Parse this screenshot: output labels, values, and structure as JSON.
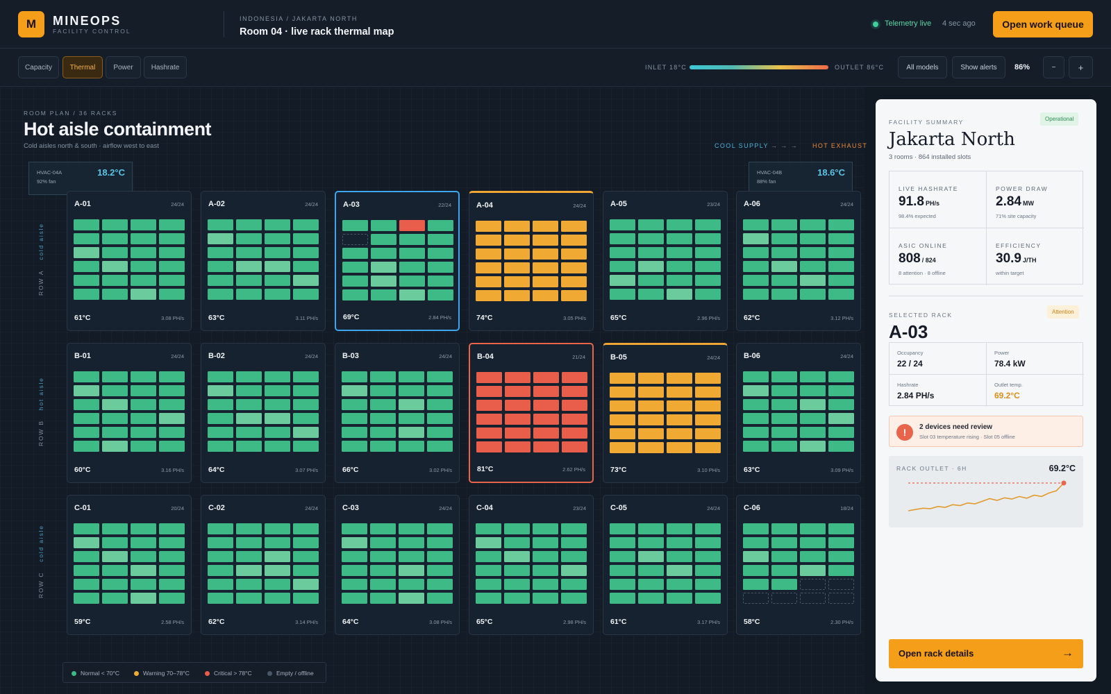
{
  "brand": {
    "logo_letter": "M",
    "name": "MINEOPS",
    "sub": "FACILITY CONTROL"
  },
  "header": {
    "crumb": "INDONESIA / JAKARTA NORTH",
    "title": "Room 04 · live rack thermal map",
    "telemetry_label": "Telemetry live",
    "telemetry_ago": "4 sec ago",
    "queue_button": "Open work queue"
  },
  "toolbar": {
    "tabs": [
      {
        "label": "Capacity"
      },
      {
        "label": "Thermal",
        "active": true
      },
      {
        "label": "Power"
      },
      {
        "label": "Hashrate"
      }
    ],
    "scale_inlet": "INLET 18°C",
    "scale_outlet": "OUTLET 86°C",
    "models_button": "All models",
    "alerts_button": "Show alerts",
    "zoom": "86%",
    "zoom_out": "−",
    "zoom_in": "+"
  },
  "plan": {
    "kicker": "ROOM PLAN / 36 RACKS",
    "title": "Hot aisle containment",
    "subtitle": "Cold aisles north & south · airflow west to east",
    "flow_cool": "COOL SUPPLY",
    "flow_arrows": "→  →  →",
    "flow_hot": "HOT EXHAUST",
    "hvac": [
      {
        "id": "HVAC-04A",
        "fan": "92% fan",
        "temp": "18.2°C"
      },
      {
        "id": "HVAC-04B",
        "fan": "88% fan",
        "temp": "18.6°C"
      }
    ],
    "rows": [
      {
        "label": "ROW A",
        "aisle": "cold aisle"
      },
      {
        "label": "ROW B",
        "aisle": "hot aisle"
      },
      {
        "label": "ROW C",
        "aisle": "cold aisle"
      }
    ]
  },
  "racks": [
    {
      "id": "A-01",
      "occupancy": "24/24",
      "temp": "61°C",
      "hash": "3.08 PH/s",
      "state": "normal"
    },
    {
      "id": "A-02",
      "occupancy": "24/24",
      "temp": "63°C",
      "hash": "3.11 PH/s",
      "state": "normal"
    },
    {
      "id": "A-03",
      "occupancy": "22/24",
      "temp": "69°C",
      "hash": "2.84 PH/s",
      "state": "selected"
    },
    {
      "id": "A-04",
      "occupancy": "24/24",
      "temp": "74°C",
      "hash": "3.05 PH/s",
      "state": "warning"
    },
    {
      "id": "A-05",
      "occupancy": "23/24",
      "temp": "65°C",
      "hash": "2.96 PH/s",
      "state": "normal"
    },
    {
      "id": "A-06",
      "occupancy": "24/24",
      "temp": "62°C",
      "hash": "3.12 PH/s",
      "state": "normal"
    },
    {
      "id": "B-01",
      "occupancy": "24/24",
      "temp": "60°C",
      "hash": "3.16 PH/s",
      "state": "normal"
    },
    {
      "id": "B-02",
      "occupancy": "24/24",
      "temp": "64°C",
      "hash": "3.07 PH/s",
      "state": "normal"
    },
    {
      "id": "B-03",
      "occupancy": "24/24",
      "temp": "66°C",
      "hash": "3.02 PH/s",
      "state": "normal"
    },
    {
      "id": "B-04",
      "occupancy": "21/24",
      "temp": "81°C",
      "hash": "2.62 PH/s",
      "state": "critical"
    },
    {
      "id": "B-05",
      "occupancy": "24/24",
      "temp": "73°C",
      "hash": "3.10 PH/s",
      "state": "warning"
    },
    {
      "id": "B-06",
      "occupancy": "24/24",
      "temp": "63°C",
      "hash": "3.09 PH/s",
      "state": "normal"
    },
    {
      "id": "C-01",
      "occupancy": "20/24",
      "temp": "59°C",
      "hash": "2.58 PH/s",
      "state": "normal"
    },
    {
      "id": "C-02",
      "occupancy": "24/24",
      "temp": "62°C",
      "hash": "3.14 PH/s",
      "state": "normal"
    },
    {
      "id": "C-03",
      "occupancy": "24/24",
      "temp": "64°C",
      "hash": "3.08 PH/s",
      "state": "normal"
    },
    {
      "id": "C-04",
      "occupancy": "23/24",
      "temp": "65°C",
      "hash": "2.98 PH/s",
      "state": "normal"
    },
    {
      "id": "C-05",
      "occupancy": "24/24",
      "temp": "61°C",
      "hash": "3.17 PH/s",
      "state": "normal"
    },
    {
      "id": "C-06",
      "occupancy": "18/24",
      "temp": "58°C",
      "hash": "2.30 PH/s",
      "state": "normal"
    }
  ],
  "slot_overrides": {
    "A-03": {
      "2": "c",
      "4": "e"
    },
    "C-06": {
      "18": "e",
      "19": "e",
      "20": "e",
      "21": "e",
      "22": "e",
      "23": "e"
    }
  },
  "legend": [
    {
      "label": "Normal < 70°C",
      "color": "#3dba85"
    },
    {
      "label": "Warning 70–78°C",
      "color": "#f0aa33"
    },
    {
      "label": "Critical > 78°C",
      "color": "#e95d4b"
    },
    {
      "label": "Empty / offline",
      "color": "#4a5565"
    }
  ],
  "panel": {
    "kicker": "FACILITY SUMMARY",
    "status": "Operational",
    "facility": "Jakarta North",
    "facility_sub": "3 rooms · 864 installed slots",
    "stats": [
      {
        "label": "LIVE HASHRATE",
        "value": "91.8",
        "unit": "PH/s",
        "sub": "98.4% expected"
      },
      {
        "label": "POWER DRAW",
        "value": "2.84",
        "unit": "MW",
        "sub": "71% site capacity"
      },
      {
        "label": "ASIC ONLINE",
        "value": "808",
        "unit": "/ 824",
        "sub": "8 attention · 8 offline"
      },
      {
        "label": "EFFICIENCY",
        "value": "30.9",
        "unit": "J/TH",
        "sub": "within target"
      }
    ],
    "selected_kicker": "SELECTED RACK",
    "selected_status": "Attention",
    "selected_rack": "A-03",
    "rack_stats": [
      {
        "label": "Occupancy",
        "value": "22 / 24"
      },
      {
        "label": "Power",
        "value": "78.4 kW"
      },
      {
        "label": "Hashrate",
        "value": "2.84 PH/s"
      },
      {
        "label": "Outlet temp.",
        "value": "69.2°C",
        "hot": true
      }
    ],
    "alert_title": "2 devices need review",
    "alert_sub": "Slot 03 temperature rising · Slot 05 offline",
    "spark_label": "RACK OUTLET · 6H",
    "spark_value": "69.2°C",
    "spark_series": [
      62.8,
      63.1,
      63.4,
      63.3,
      63.8,
      63.6,
      64.2,
      64.0,
      64.6,
      64.4,
      65.0,
      65.6,
      65.2,
      65.8,
      65.5,
      66.1,
      65.7,
      66.4,
      66.1,
      66.9,
      67.4,
      69.2
    ],
    "spark_threshold": 69.2,
    "details_button": "Open rack details",
    "details_arrow": "→"
  }
}
